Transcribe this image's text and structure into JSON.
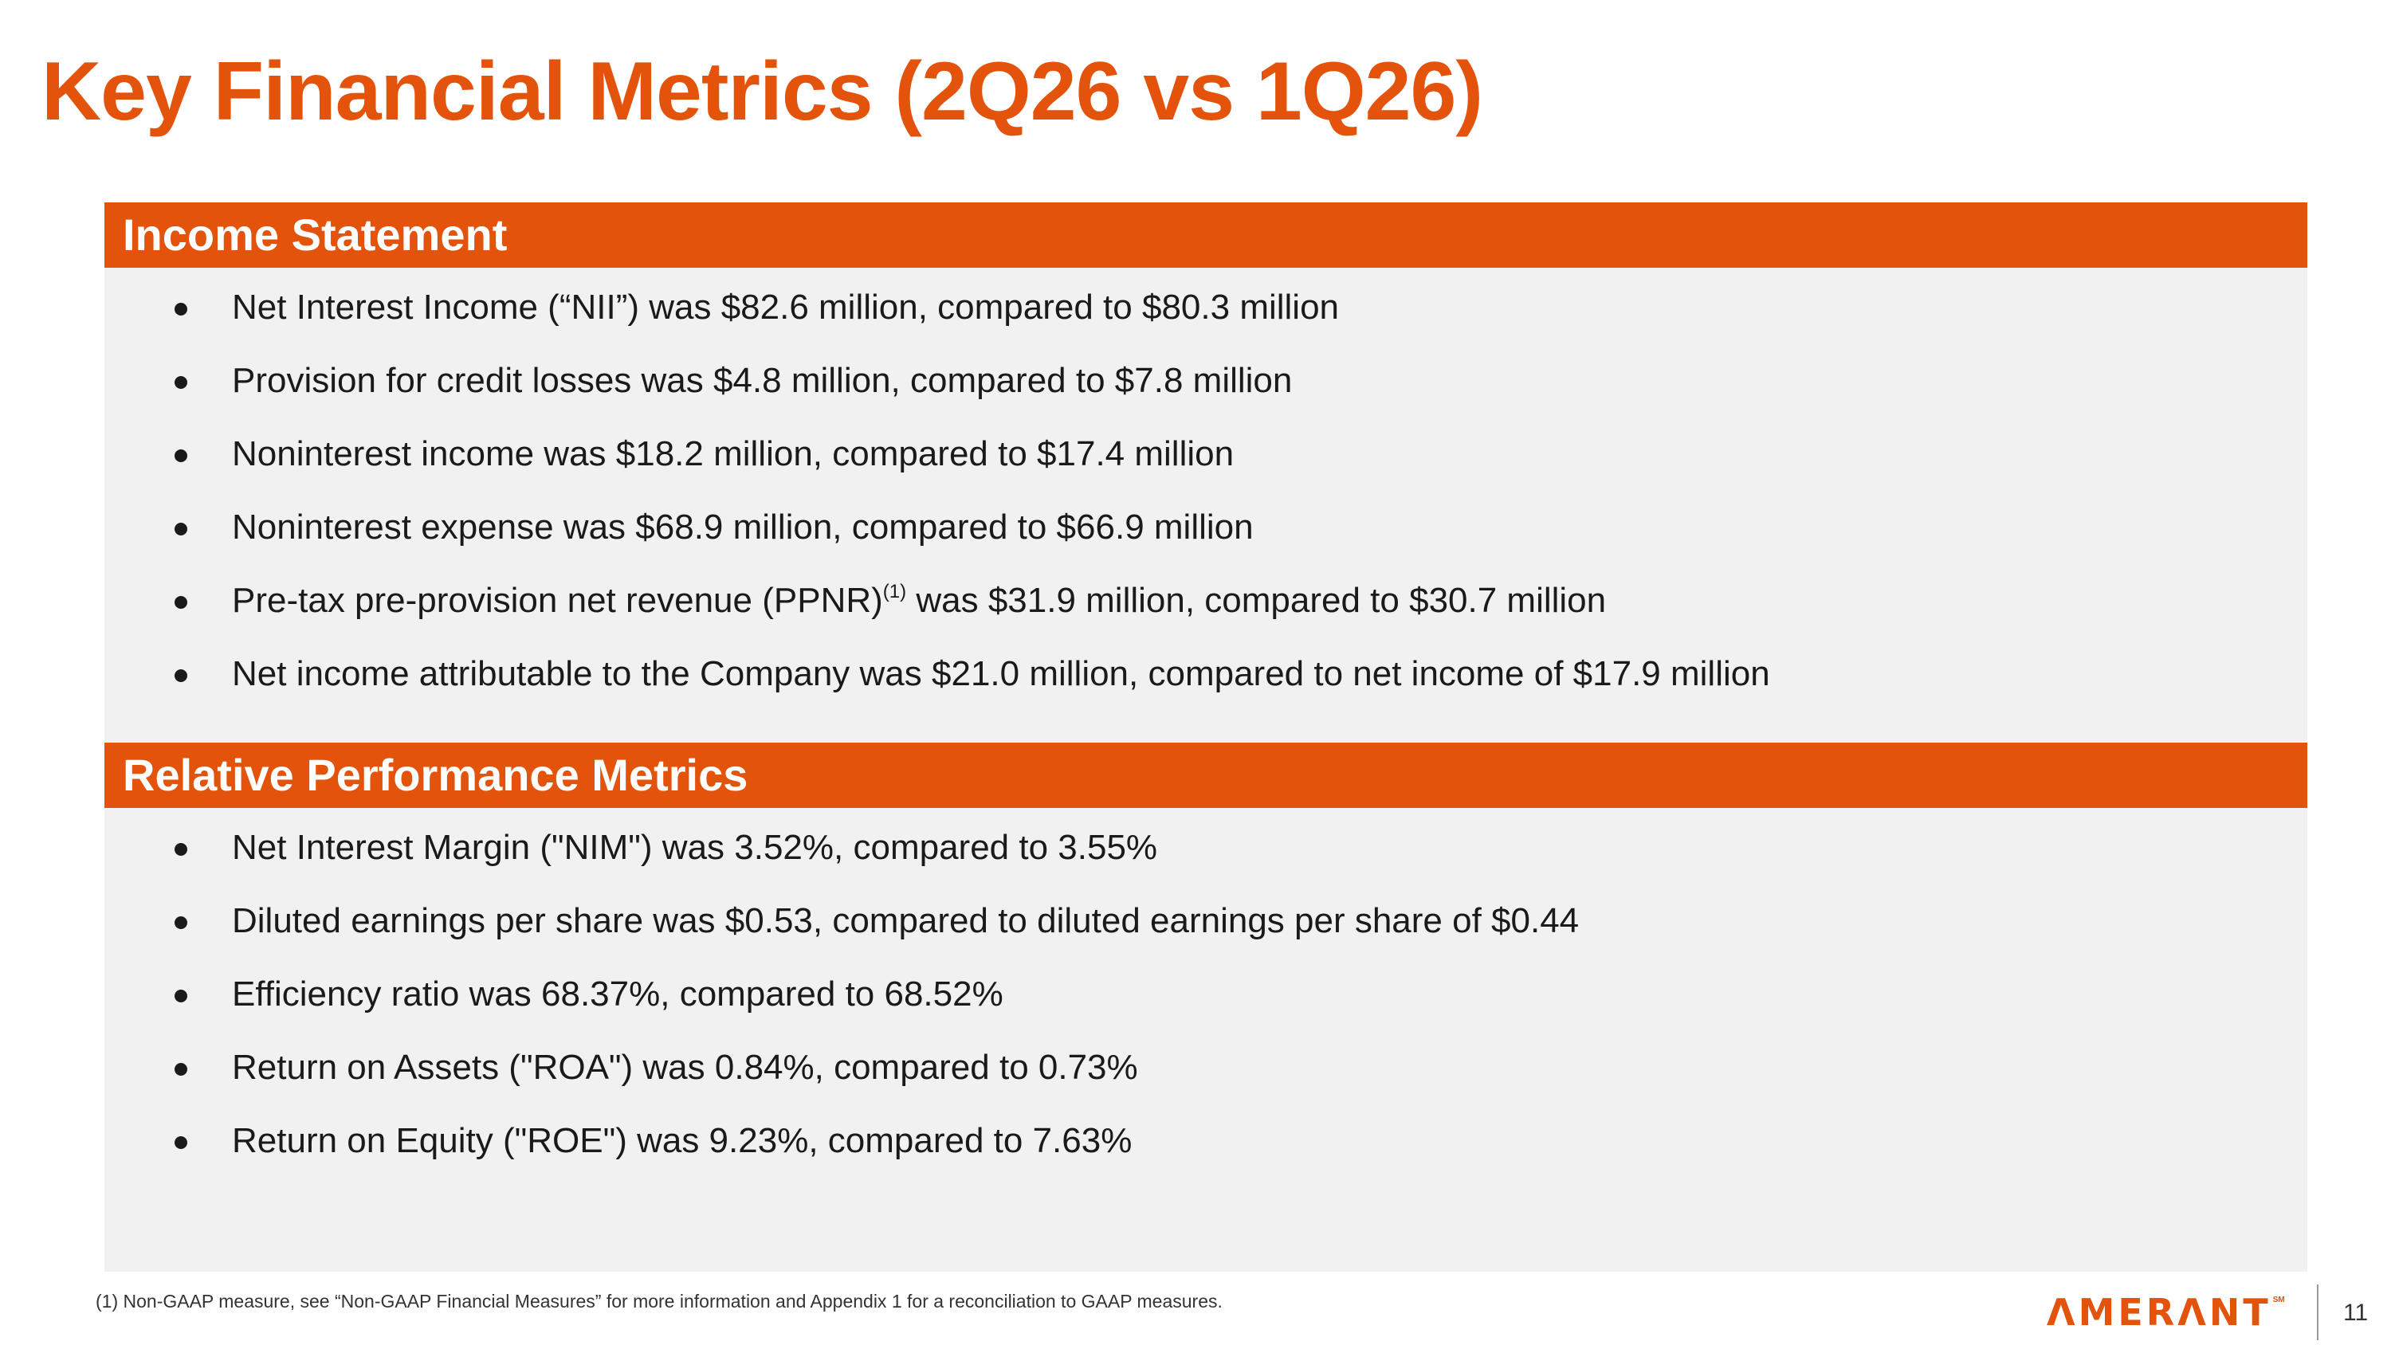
{
  "slide": {
    "title": "Key Financial Metrics (2Q26 vs 1Q26)",
    "page_number": "11"
  },
  "income_statement": {
    "header": "Income Statement",
    "items": [
      "Net Interest Income (“NII”) was $82.6 million, compared to $80.3 million",
      "Provision for credit losses was $4.8 million, compared to $7.8 million",
      "Noninterest income was $18.2 million, compared to $17.4 million",
      "Noninterest expense was $68.9 million, compared to $66.9 million",
      {
        "before": "Pre-tax pre-provision net revenue (PPNR)",
        "sup": "(1)",
        "after": " was $31.9 million, compared to $30.7 million"
      },
      "Net income attributable to the Company was $21.0 million, compared to net income of $17.9 million"
    ]
  },
  "relative_performance": {
    "header": "Relative Performance Metrics",
    "items": [
      "Net Interest Margin (\"NIM\") was 3.52%, compared to 3.55%",
      "Diluted earnings per share was $0.53, compared to diluted earnings per share of $0.44",
      "Efficiency ratio was 68.37%, compared to 68.52%",
      "Return on Assets (\"ROA\") was 0.84%, compared to 0.73%",
      "Return on Equity (\"ROE\") was 9.23%, compared to 7.63%"
    ]
  },
  "footnote": "(1) Non-GAAP measure, see “Non-GAAP Financial Measures” for more information and Appendix 1 for a reconciliation to GAAP measures.",
  "logo": {
    "text": "ΛMERΛNT",
    "mark": "SM"
  },
  "colors": {
    "accent": "#e3530b",
    "panel_background": "#f1f1f1",
    "text": "#1a1a1a"
  }
}
